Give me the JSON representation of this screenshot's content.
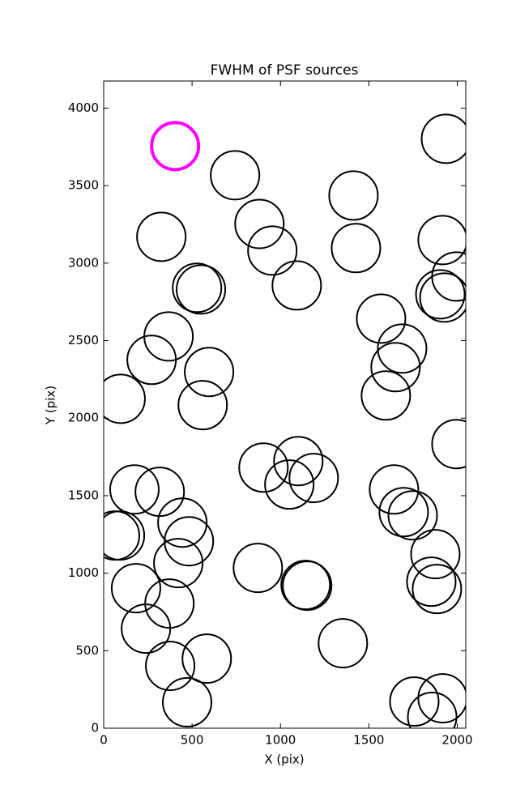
{
  "chart_data": {
    "type": "scatter",
    "title": "FWHM of PSF sources",
    "x_label": "X (pix)",
    "y_label": "Y (pix)",
    "xlim": [
      0,
      2048
    ],
    "ylim": [
      0,
      4175
    ],
    "xticks": [
      0,
      500,
      1000,
      1500,
      2000
    ],
    "yticks": [
      0,
      500,
      1000,
      1500,
      2000,
      2500,
      3000,
      3500,
      4000
    ],
    "series": [
      {
        "color": "#000000",
        "x": [
          1936,
          743,
          1413,
          881,
          326,
          1917,
          954,
          1427,
          1995,
          528,
          550,
          1092,
          1904,
          1927,
          1569,
          367,
          1688,
          271,
          1651,
          596,
          96,
          1596,
          560,
          1995,
          904,
          1101,
          1188,
          1050,
          174,
          317,
          1642,
          1697,
          1748,
          445,
          482,
          64,
          92,
          1876,
          422,
          872,
          183,
          1142,
          1151,
          1853,
          1885,
          372,
          239,
          1353,
          583,
          376,
          472,
          1757,
          1917,
          1858
        ],
        "values": [
          3802,
          3567,
          3436,
          3253,
          3170,
          3149,
          3081,
          3097,
          2914,
          2841,
          2830,
          2856,
          2799,
          2778,
          2642,
          2527,
          2449,
          2376,
          2329,
          2298,
          2125,
          2146,
          2084,
          1833,
          1681,
          1723,
          1614,
          1572,
          1540,
          1525,
          1540,
          1394,
          1373,
          1326,
          1206,
          1243,
          1243,
          1123,
          1065,
          1034,
          903,
          924,
          919,
          945,
          898,
          804,
          642,
          548,
          449,
          402,
          167,
          172,
          193,
          73
        ]
      },
      {
        "color": "#ff00ff",
        "x": [
          404
        ],
        "values": [
          3755
        ]
      }
    ]
  }
}
